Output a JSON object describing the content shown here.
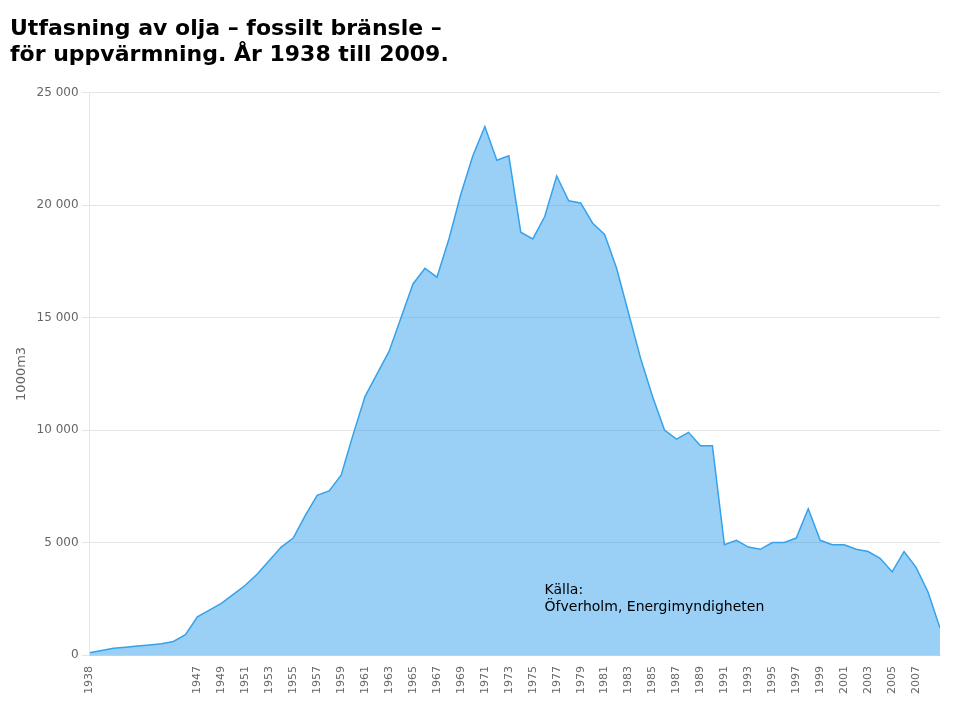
{
  "chart_data": {
    "type": "area",
    "title": "Utfasning av olja – fossilt bränsle –\nför uppvärmning. År 1938 till 2009.",
    "y_label": "1000m3",
    "annotation": "Källa:\nÖfverholm, Energimyndigheten",
    "x": [
      1938,
      1939,
      1940,
      1941,
      1942,
      1943,
      1944,
      1945,
      1946,
      1947,
      1948,
      1949,
      1950,
      1951,
      1952,
      1953,
      1954,
      1955,
      1956,
      1957,
      1958,
      1959,
      1960,
      1961,
      1962,
      1963,
      1964,
      1965,
      1966,
      1967,
      1968,
      1969,
      1970,
      1971,
      1972,
      1973,
      1974,
      1975,
      1976,
      1977,
      1978,
      1979,
      1980,
      1981,
      1982,
      1983,
      1984,
      1985,
      1986,
      1987,
      1988,
      1989,
      1990,
      1991,
      1992,
      1993,
      1994,
      1995,
      1996,
      1997,
      1998,
      1999,
      2000,
      2001,
      2002,
      2003,
      2004,
      2005,
      2006,
      2007,
      2008,
      2009
    ],
    "values": [
      100,
      200,
      300,
      350,
      400,
      450,
      500,
      600,
      900,
      1700,
      2000,
      2300,
      2700,
      3100,
      3600,
      4200,
      4800,
      5200,
      6200,
      7100,
      7300,
      8000,
      9800,
      11500,
      12500,
      13500,
      15000,
      16500,
      17200,
      16800,
      18500,
      20500,
      22200,
      23500,
      22000,
      22200,
      18800,
      18500,
      19500,
      21300,
      20200,
      20100,
      19200,
      18700,
      17200,
      15200,
      13200,
      11500,
      10000,
      9600,
      9900,
      9300,
      9300,
      4900,
      5100,
      4800,
      4700,
      5000,
      5000,
      5200,
      6500,
      5100,
      4900,
      4900,
      4700,
      4600,
      4300,
      3700,
      4600,
      3900,
      2800,
      1200
    ],
    "xlim": [
      1938,
      2009
    ],
    "xticks": [
      1938,
      1947,
      1949,
      1951,
      1953,
      1955,
      1957,
      1959,
      1961,
      1963,
      1965,
      1967,
      1969,
      1971,
      1973,
      1975,
      1977,
      1979,
      1981,
      1983,
      1985,
      1987,
      1989,
      1991,
      1993,
      1995,
      1997,
      1999,
      2001,
      2003,
      2005,
      2007
    ],
    "ylim": [
      0,
      25000
    ],
    "yticks": [
      0,
      {
        "value": 5000,
        "label": "5 000"
      },
      {
        "value": 10000,
        "label": "10 000"
      },
      {
        "value": 15000,
        "label": "15 000"
      },
      {
        "value": 20000,
        "label": "20 000"
      },
      {
        "value": 25000,
        "label": "25 000"
      }
    ],
    "grid": "y",
    "legend": false
  }
}
